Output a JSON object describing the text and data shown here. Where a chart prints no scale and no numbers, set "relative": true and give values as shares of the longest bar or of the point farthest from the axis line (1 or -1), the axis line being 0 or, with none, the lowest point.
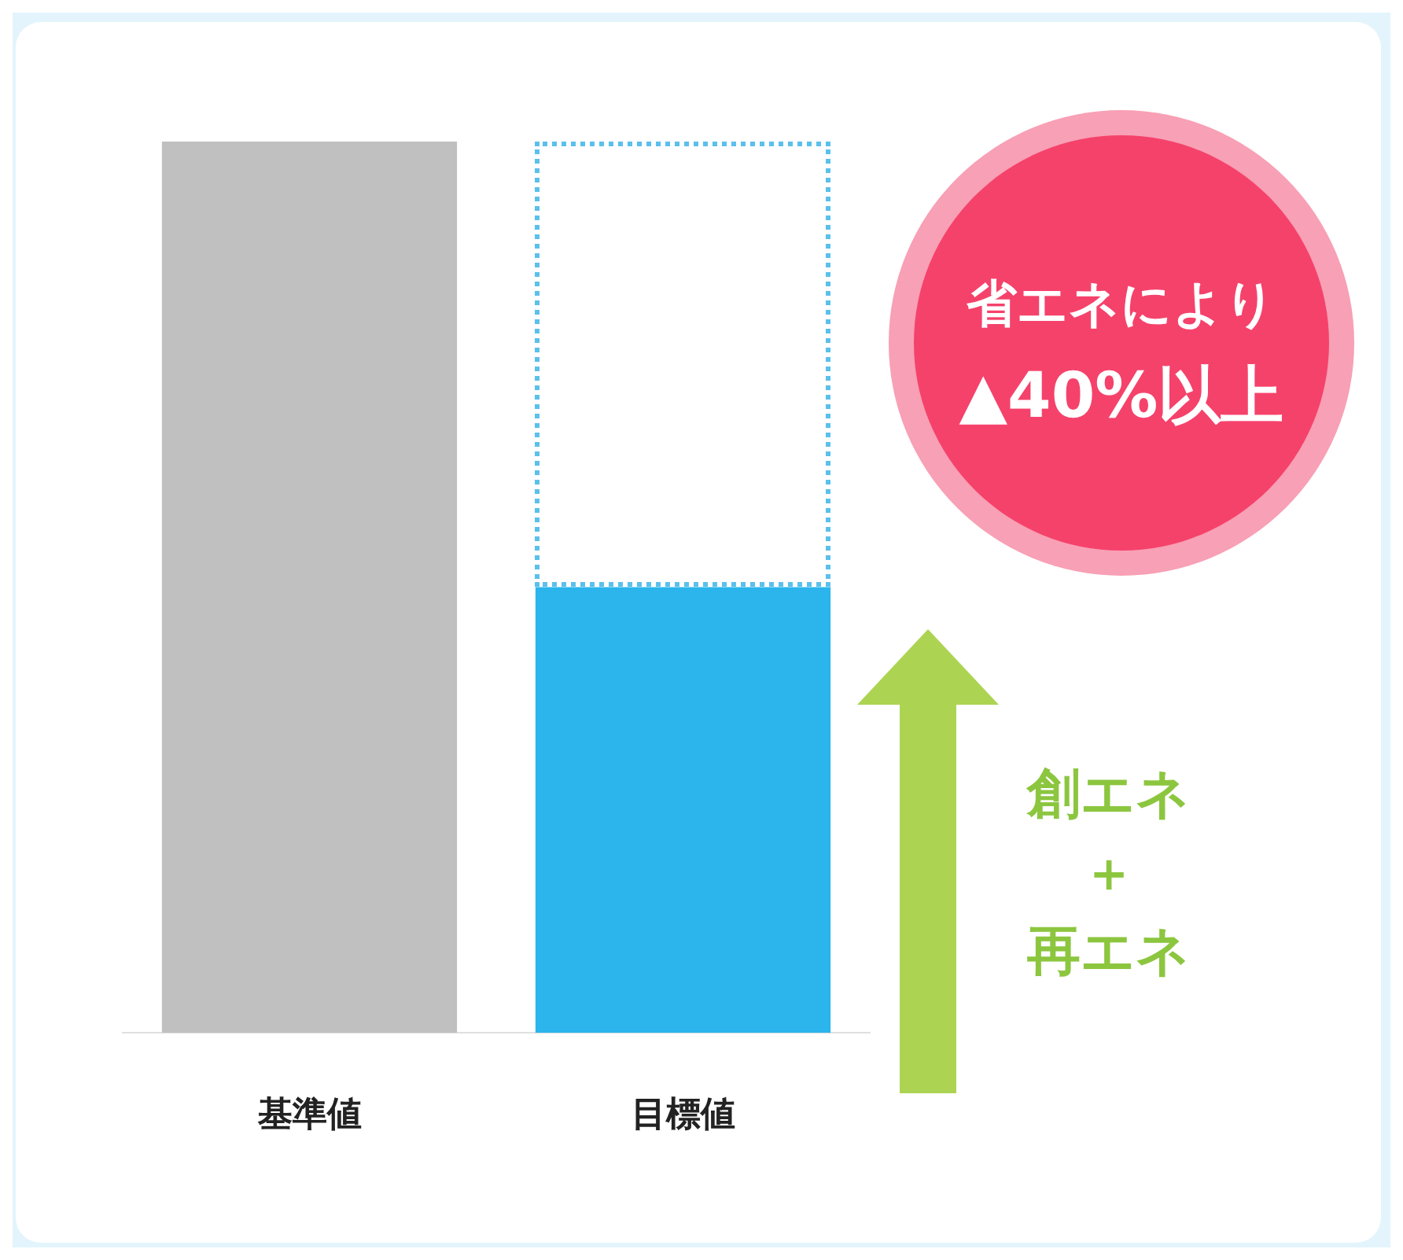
{
  "chart_data": {
    "type": "bar",
    "relative": true,
    "categories": [
      "基準値",
      "目標値"
    ],
    "values": [
      1,
      0.5
    ],
    "colors": [
      "#c0c0c0",
      "#2bb5ec"
    ],
    "annotations": [
      "省エネにより",
      "▲40%以上",
      "創エネ",
      "＋",
      "再エネ"
    ],
    "grid": false,
    "legend": false
  }
}
